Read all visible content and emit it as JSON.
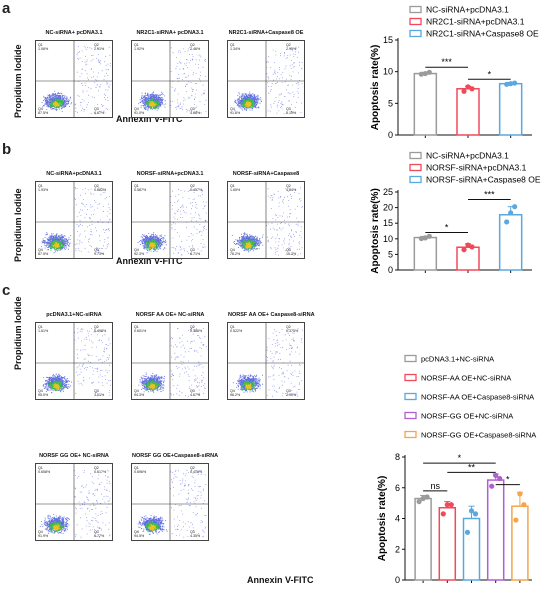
{
  "panels": {
    "a": {
      "letter": "a",
      "ylabel": "Propidium Iodide",
      "xlabel": "Annexin V-FITC",
      "flow_plots": [
        {
          "title": "NC-siRNA+ pcDNA3.1",
          "q1": "Q1",
          "q1v": "1.06%",
          "q2": "Q2",
          "q2v": "2.91%",
          "q3": "Q3",
          "q3v": "6.67%",
          "q4": "Q4",
          "q4v": "87.5%"
        },
        {
          "title": "NR2C1-siRNA+ pcDNA3.1",
          "q1": "Q1",
          "q1v": "1.92%",
          "q2": "Q2",
          "q2v": "2.46%",
          "q3": "Q3",
          "q3v": "4.98%",
          "q4": "Q4",
          "q4v": "91.0%"
        },
        {
          "title": "NR2C1-siRNA+Caspase8 OE",
          "q1": "Q1",
          "q1v": "1.34%",
          "q2": "Q2",
          "q2v": "2.95%",
          "q3": "Q3",
          "q3v": "5.10%",
          "q4": "Q4",
          "q4v": "91.6%"
        }
      ]
    },
    "b": {
      "letter": "b",
      "ylabel": "Propidium Iodide",
      "xlabel": "Annexin V-FITC",
      "flow_plots": [
        {
          "title": "NC-siRNA+pcDNA3.1",
          "q1": "Q1",
          "q1v": "1.93%",
          "q2": "Q2",
          "q2v": "0.882%",
          "q3": "Q3",
          "q3v": "9.73%",
          "q4": "Q4",
          "q4v": "87.5%"
        },
        {
          "title": "NORSF-siRNA+pcDNA3.1",
          "q1": "Q1",
          "q1v": "0.587%",
          "q2": "Q2",
          "q2v": "0.457%",
          "q3": "Q3",
          "q3v": "6.71%",
          "q4": "Q4",
          "q4v": "92.3%"
        },
        {
          "title": "NORSF-siRNA+Caspase8",
          "q1": "Q1",
          "q1v": "1.65%",
          "q2": "Q2",
          "q2v": "4.84%",
          "q3": "Q3",
          "q3v": "15.3%",
          "q4": "Q4",
          "q4v": "78.2%"
        }
      ]
    },
    "c": {
      "letter": "c",
      "ylabel": "Propidium Iodide",
      "xlabel": "Annexin V-FITC",
      "flow_plots": [
        {
          "title": "pcDNA3.1+NC-siRNA",
          "q1": "Q1",
          "q1v": "1.61%",
          "q2": "Q2",
          "q2v": "0.498%",
          "q3": "Q3",
          "q3v": "3.01%",
          "q4": "Q4",
          "q4v": "95.0%"
        },
        {
          "title": "NORSF AA OE+ NC-siRNA",
          "q1": "Q1",
          "q1v": "0.601%",
          "q2": "Q2",
          "q2v": "0.386%",
          "q3": "Q3",
          "q3v": "4.67%",
          "q4": "Q4",
          "q4v": "94.3%"
        },
        {
          "title": "NORSF AA OE+ Caspase8-siRNA",
          "q1": "Q1",
          "q1v": "0.522%",
          "q2": "Q2",
          "q2v": "0.375%",
          "q3": "Q3",
          "q3v": "2.90%",
          "q4": "Q4",
          "q4v": "96.2%"
        },
        {
          "title": "NORSF GG OE+ NC-siRNA",
          "q1": "Q1",
          "q1v": "0.658%",
          "q2": "Q2",
          "q2v": "0.617%",
          "q3": "Q3",
          "q3v": "6.77%",
          "q4": "Q4",
          "q4v": "91.9%"
        },
        {
          "title": "NORSF GG OE+Caspase8-siRNA",
          "q1": "Q1",
          "q1v": "0.696%",
          "q2": "Q2",
          "q2v": "0.476%",
          "q3": "Q3",
          "q3v": "4.35%",
          "q4": "Q4",
          "q4v": "94.5%"
        }
      ]
    }
  },
  "chart_data": [
    {
      "type": "bar",
      "ylabel": "Apoptosis rate(%)",
      "ylim": [
        0,
        15
      ],
      "yticks": [
        "0",
        "5",
        "10",
        "15"
      ],
      "categories": [
        "NC-siRNA+pcDNA3.1",
        "NR2C1-siRNA+pcDNA3.1",
        "NR2C1-siRNA+Caspase8 OE"
      ],
      "values": [
        9.7,
        7.3,
        8.1
      ],
      "errors": [
        0.2,
        0.4,
        0.2
      ],
      "points": [
        [
          9.6,
          9.7,
          9.9
        ],
        [
          6.9,
          7.6,
          7.3
        ],
        [
          8.0,
          8.1,
          8.2
        ]
      ],
      "colors": [
        "#9b9b9b",
        "#f04a5a",
        "#5aa8e0"
      ],
      "legend": [
        "NC-siRNA+pcDNA3.1",
        "NR2C1-siRNA+pcDNA3.1",
        "NR2C1-siRNA+Caspase8 OE"
      ],
      "legend_position": "top",
      "significance": [
        {
          "from": 0,
          "to": 1,
          "label": "***",
          "y": 10.7
        },
        {
          "from": 1,
          "to": 2,
          "label": "*",
          "y": 8.8
        }
      ]
    },
    {
      "type": "bar",
      "ylabel": "Apoptosis rate(%)",
      "ylim": [
        0,
        25
      ],
      "yticks": [
        "0",
        "5",
        "10",
        "15",
        "20",
        "25"
      ],
      "categories": [
        "NC-siRNA+pcDNA3.1",
        "NORSF-siRNA+pcDNA3.1",
        "NORSF-siRNA+Caspase8 OE"
      ],
      "values": [
        10.4,
        7.3,
        17.7
      ],
      "errors": [
        0.4,
        1.1,
        2.6
      ],
      "points": [
        [
          10.1,
          10.3,
          10.8
        ],
        [
          6.5,
          8.0,
          7.4
        ],
        [
          15.4,
          18.3,
          20.3
        ]
      ],
      "colors": [
        "#9b9b9b",
        "#f04a5a",
        "#5aa8e0"
      ],
      "legend": [
        "NC-siRNA+pcDNA3.1",
        "NORSF-siRNA+pcDNA3.1",
        "NORSF-siRNA+Caspase8 OE"
      ],
      "legend_position": "top",
      "significance": [
        {
          "from": 0,
          "to": 1,
          "label": "*",
          "y": 12.0
        },
        {
          "from": 1,
          "to": 2,
          "label": "***",
          "y": 22.6
        }
      ]
    },
    {
      "type": "bar",
      "ylabel": "Apoptosis rate(%)",
      "ylim": [
        0,
        8
      ],
      "yticks": [
        "0",
        "2",
        "4",
        "6",
        "8"
      ],
      "categories": [
        "pcDNA3.1+NC-siRNA",
        "NORSF-AA OE+NC-siRNA",
        "NORSF-AA OE+Caspase8-siRNA",
        "NORSF-GG OE+NC-siRNA",
        "NORSF-GG OE+Caspase8-siRNA"
      ],
      "values": [
        5.3,
        4.7,
        4.0,
        6.5,
        4.8
      ],
      "errors": [
        0.2,
        0.4,
        0.8,
        0.4,
        0.9
      ],
      "points": [
        [
          5.1,
          5.3,
          5.4
        ],
        [
          4.3,
          4.9,
          4.9
        ],
        [
          3.1,
          4.5,
          4.3
        ],
        [
          6.1,
          6.8,
          6.6
        ],
        [
          3.9,
          5.6,
          4.9
        ]
      ],
      "colors": [
        "#9b9b9b",
        "#f04a5a",
        "#5aa8e0",
        "#b05fd0",
        "#f5a54a"
      ],
      "legend": [
        "pcDNA3.1+NC-siRNA",
        "NORSF-AA OE+NC-siRNA",
        "NORSF-AA OE+Caspase8-siRNA",
        "NORSF-GG OE+NC-siRNA",
        "NORSF-GG OE+Caspase8-siRNA"
      ],
      "legend_position": "top",
      "significance": [
        {
          "from": 0,
          "to": 1,
          "label": "ns",
          "y": 5.8
        },
        {
          "from": 0,
          "to": 3,
          "label": "*",
          "y": 7.6
        },
        {
          "from": 1,
          "to": 3,
          "label": "**",
          "y": 7.0
        },
        {
          "from": 3,
          "to": 4,
          "label": "*",
          "y": 6.2
        }
      ]
    }
  ]
}
